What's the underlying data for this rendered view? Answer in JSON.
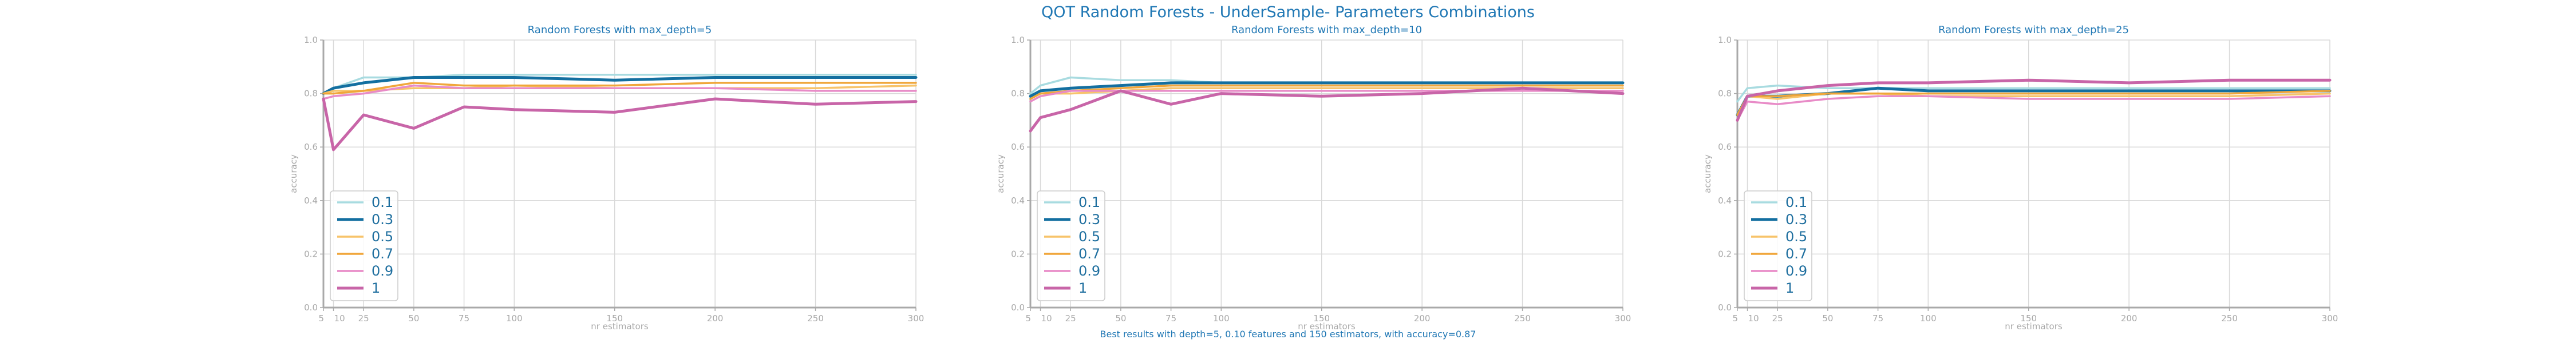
{
  "figure": {
    "suptitle": "QOT Random Forests - UnderSample- Parameters Combinations",
    "caption": "Best results with depth=5, 0.10 features and 150 estimators, with accuracy=0.87"
  },
  "colors": {
    "0.1": "#a8dbe0",
    "0.3": "#136fa0",
    "0.5": "#f7c36a",
    "0.7": "#f0a63a",
    "0.9": "#e88bc7",
    "1": "#c865a8",
    "title": "#1f77b4",
    "axis": "#a9a9a9",
    "grid": "#d9d9d9"
  },
  "chart_data": [
    {
      "type": "line",
      "title": "Random Forests with max_depth=5",
      "xlabel": "nr estimators",
      "ylabel": "accuracy",
      "x": [
        5,
        10,
        25,
        50,
        75,
        100,
        150,
        200,
        250,
        300
      ],
      "xticks": [
        "5",
        "10",
        "25",
        "50",
        "75",
        "100",
        "150",
        "200",
        "250",
        "300"
      ],
      "ylim": [
        0,
        1
      ],
      "yticks": [
        "0.0",
        "0.2",
        "0.4",
        "0.6",
        "0.8",
        "1.0"
      ],
      "grid": true,
      "legend": "bottom-left",
      "series": [
        {
          "name": "0.1",
          "values": [
            0.8,
            0.82,
            0.86,
            0.86,
            0.87,
            0.87,
            0.87,
            0.87,
            0.87,
            0.87
          ]
        },
        {
          "name": "0.3",
          "values": [
            0.8,
            0.82,
            0.84,
            0.86,
            0.86,
            0.86,
            0.85,
            0.86,
            0.86,
            0.86
          ]
        },
        {
          "name": "0.5",
          "values": [
            0.8,
            0.81,
            0.81,
            0.82,
            0.82,
            0.83,
            0.82,
            0.82,
            0.82,
            0.83
          ]
        },
        {
          "name": "0.7",
          "values": [
            0.8,
            0.8,
            0.81,
            0.84,
            0.83,
            0.83,
            0.83,
            0.84,
            0.84,
            0.84
          ]
        },
        {
          "name": "0.9",
          "values": [
            0.78,
            0.79,
            0.8,
            0.83,
            0.82,
            0.82,
            0.82,
            0.82,
            0.81,
            0.81
          ]
        },
        {
          "name": "1",
          "values": [
            0.78,
            0.59,
            0.72,
            0.67,
            0.75,
            0.74,
            0.73,
            0.78,
            0.76,
            0.77
          ]
        }
      ]
    },
    {
      "type": "line",
      "title": "Random Forests with max_depth=10",
      "xlabel": "nr estimators",
      "ylabel": "accuracy",
      "x": [
        5,
        10,
        25,
        50,
        75,
        100,
        150,
        200,
        250,
        300
      ],
      "xticks": [
        "5",
        "10",
        "25",
        "50",
        "75",
        "100",
        "150",
        "200",
        "250",
        "300"
      ],
      "ylim": [
        0,
        1
      ],
      "yticks": [
        "0.0",
        "0.2",
        "0.4",
        "0.6",
        "0.8",
        "1.0"
      ],
      "grid": true,
      "legend": "bottom-left",
      "series": [
        {
          "name": "0.1",
          "values": [
            0.8,
            0.83,
            0.86,
            0.85,
            0.85,
            0.84,
            0.84,
            0.84,
            0.84,
            0.84
          ]
        },
        {
          "name": "0.3",
          "values": [
            0.79,
            0.81,
            0.82,
            0.83,
            0.84,
            0.84,
            0.84,
            0.84,
            0.84,
            0.84
          ]
        },
        {
          "name": "0.5",
          "values": [
            0.78,
            0.8,
            0.8,
            0.81,
            0.82,
            0.82,
            0.82,
            0.82,
            0.82,
            0.82
          ]
        },
        {
          "name": "0.7",
          "values": [
            0.78,
            0.8,
            0.81,
            0.82,
            0.83,
            0.83,
            0.83,
            0.83,
            0.83,
            0.83
          ]
        },
        {
          "name": "0.9",
          "values": [
            0.77,
            0.79,
            0.81,
            0.81,
            0.81,
            0.81,
            0.81,
            0.81,
            0.81,
            0.81
          ]
        },
        {
          "name": "1",
          "values": [
            0.66,
            0.71,
            0.74,
            0.81,
            0.76,
            0.8,
            0.79,
            0.8,
            0.82,
            0.8
          ]
        }
      ]
    },
    {
      "type": "line",
      "title": "Random Forests with max_depth=25",
      "xlabel": "nr estimators",
      "ylabel": "accuracy",
      "x": [
        5,
        10,
        25,
        50,
        75,
        100,
        150,
        200,
        250,
        300
      ],
      "xticks": [
        "5",
        "10",
        "25",
        "50",
        "75",
        "100",
        "150",
        "200",
        "250",
        "300"
      ],
      "ylim": [
        0,
        1
      ],
      "yticks": [
        "0.0",
        "0.2",
        "0.4",
        "0.6",
        "0.8",
        "1.0"
      ],
      "grid": true,
      "legend": "bottom-left",
      "series": [
        {
          "name": "0.1",
          "values": [
            0.77,
            0.82,
            0.83,
            0.82,
            0.82,
            0.82,
            0.82,
            0.82,
            0.82,
            0.82
          ]
        },
        {
          "name": "0.3",
          "values": [
            0.72,
            0.79,
            0.79,
            0.8,
            0.82,
            0.81,
            0.81,
            0.81,
            0.81,
            0.81
          ]
        },
        {
          "name": "0.5",
          "values": [
            0.72,
            0.79,
            0.78,
            0.8,
            0.8,
            0.79,
            0.79,
            0.79,
            0.79,
            0.8
          ]
        },
        {
          "name": "0.7",
          "values": [
            0.72,
            0.79,
            0.79,
            0.8,
            0.8,
            0.8,
            0.8,
            0.8,
            0.8,
            0.81
          ]
        },
        {
          "name": "0.9",
          "values": [
            0.7,
            0.77,
            0.76,
            0.78,
            0.79,
            0.79,
            0.78,
            0.78,
            0.78,
            0.79
          ]
        },
        {
          "name": "1",
          "values": [
            0.7,
            0.79,
            0.81,
            0.83,
            0.84,
            0.84,
            0.85,
            0.84,
            0.85,
            0.85
          ]
        }
      ]
    }
  ]
}
